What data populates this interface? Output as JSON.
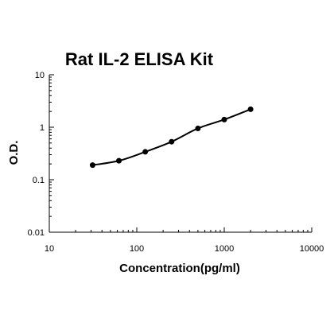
{
  "chart_data": {
    "type": "scatter",
    "title": "Rat IL-2 ELISA Kit",
    "xlabel": "Concentration(pg/ml)",
    "ylabel": "O.D.",
    "x_scale": "log",
    "y_scale": "log",
    "xlim": [
      10,
      10000
    ],
    "ylim": [
      0.01,
      10
    ],
    "x_ticks": [
      10,
      100,
      1000,
      10000
    ],
    "x_tick_labels": [
      "10",
      "100",
      "1000",
      "10000"
    ],
    "y_ticks": [
      0.01,
      0.1,
      1,
      10
    ],
    "y_tick_labels": [
      "0.01",
      "0.1",
      "1",
      "10"
    ],
    "grid": false,
    "legend": "none",
    "fit_curve": true,
    "series": [
      {
        "x": [
          31.25,
          62.5,
          125,
          250,
          500,
          1000,
          2000
        ],
        "y": [
          0.19,
          0.23,
          0.34,
          0.53,
          0.95,
          1.4,
          2.2
        ]
      }
    ],
    "colors": {
      "marker": "#000000",
      "line": "#000000",
      "axis": "#000000"
    }
  }
}
